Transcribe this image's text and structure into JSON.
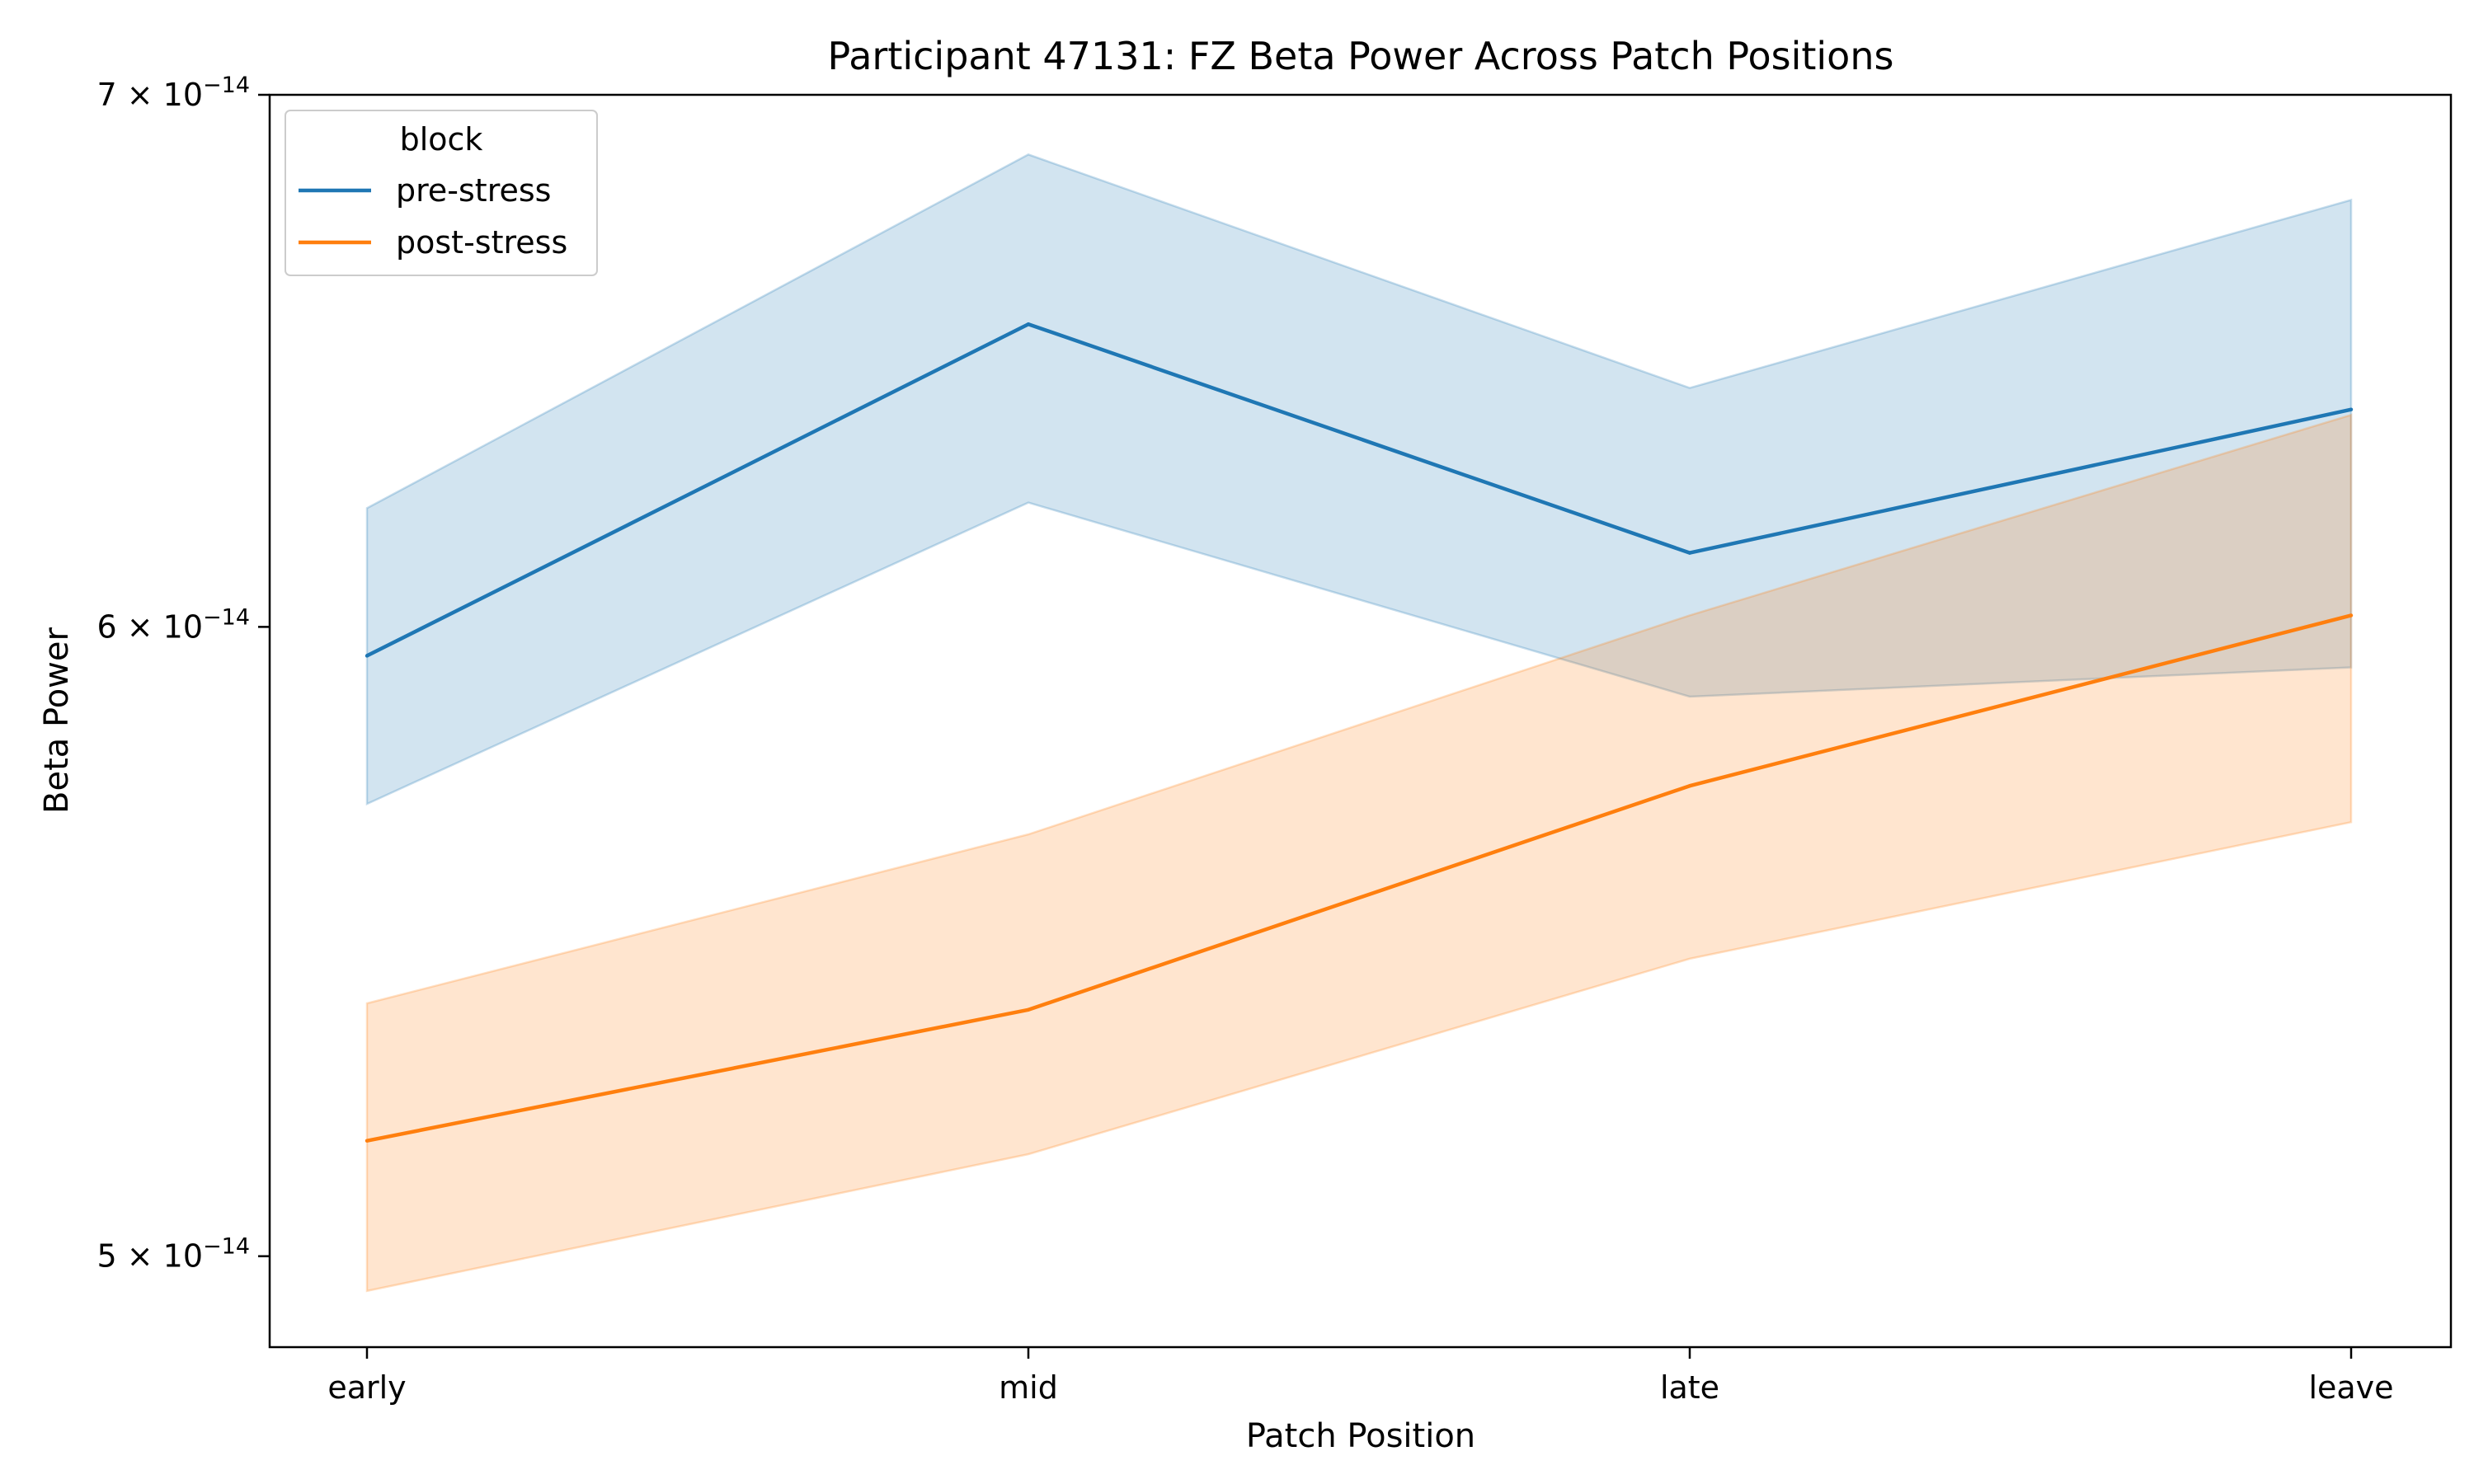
{
  "chart_data": {
    "type": "line",
    "title": "Participant 47131: FZ Beta Power Across Patch Positions",
    "xlabel": "Patch Position",
    "ylabel": "Beta Power",
    "categories": [
      "early",
      "mid",
      "late",
      "leave"
    ],
    "y_scale": "log",
    "ylim": [
      4.87e-14,
      7e-14
    ],
    "yticks": [
      {
        "value": 5e-14,
        "mantissa": "5",
        "exponent": "−14"
      },
      {
        "value": 6e-14,
        "mantissa": "6",
        "exponent": "−14"
      },
      {
        "value": 7e-14,
        "mantissa": "7",
        "exponent": "−14"
      }
    ],
    "legend": {
      "title": "block",
      "placement": "top-left"
    },
    "grid": false,
    "series": [
      {
        "name": "pre-stress",
        "color": "#1f77b4",
        "values": [
          5.95e-14,
          6.55e-14,
          6.13e-14,
          6.39e-14
        ],
        "ci_low": [
          5.7e-14,
          6.22e-14,
          5.88e-14,
          5.93e-14
        ],
        "ci_high": [
          6.21e-14,
          6.88e-14,
          6.43e-14,
          6.79e-14
        ]
      },
      {
        "name": "post-stress",
        "color": "#ff7f0e",
        "values": [
          5.17e-14,
          5.37e-14,
          5.73e-14,
          6.02e-14
        ],
        "ci_low": [
          4.95e-14,
          5.15e-14,
          5.45e-14,
          5.67e-14
        ],
        "ci_high": [
          5.38e-14,
          5.65e-14,
          6.02e-14,
          6.38e-14
        ]
      }
    ]
  }
}
